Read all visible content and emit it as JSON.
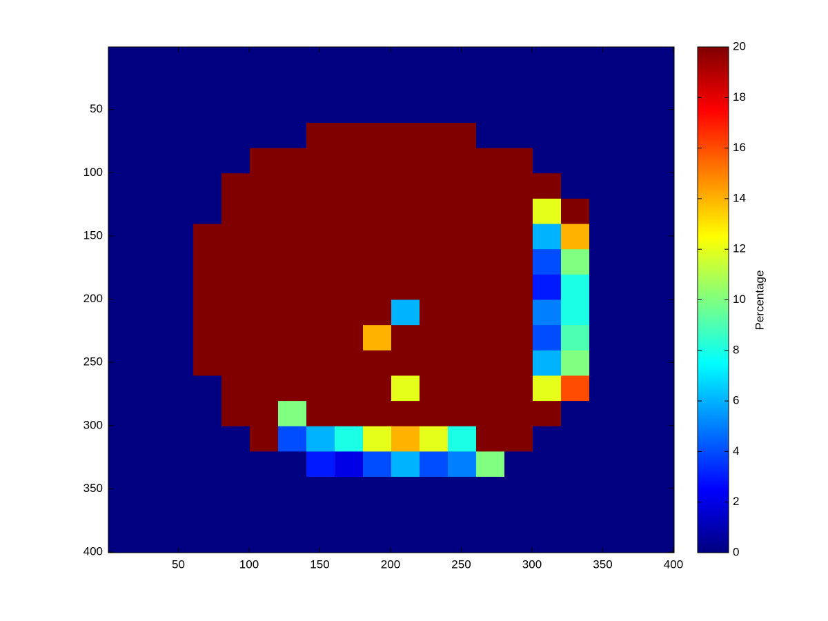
{
  "chart_data": {
    "type": "heatmap",
    "colormap": "jet",
    "xlim": [
      0.5,
      400.5
    ],
    "ylim": [
      0.5,
      400.5
    ],
    "y_reversed": true,
    "xticks": [
      50,
      100,
      150,
      200,
      250,
      300,
      350,
      400
    ],
    "yticks": [
      50,
      100,
      150,
      200,
      250,
      300,
      350,
      400
    ],
    "clim": [
      0,
      20
    ],
    "cticks": [
      0,
      2,
      4,
      6,
      8,
      10,
      12,
      14,
      16,
      18,
      20
    ],
    "colorbar_label": "Percentage",
    "z": [
      [
        0,
        0,
        0,
        0,
        0,
        0,
        0,
        0,
        0,
        0,
        0,
        0,
        0,
        0,
        0,
        0,
        0,
        0,
        0,
        0
      ],
      [
        0,
        0,
        0,
        0,
        0,
        0,
        0,
        0,
        0,
        0,
        0,
        0,
        0,
        0,
        0,
        0,
        0,
        0,
        0,
        0
      ],
      [
        0,
        0,
        0,
        0,
        0,
        0,
        0,
        0,
        0,
        0,
        0,
        0,
        0,
        0,
        0,
        0,
        0,
        0,
        0,
        0
      ],
      [
        0,
        0,
        0,
        0,
        0,
        0,
        0,
        20,
        20,
        20,
        20,
        20,
        20,
        0,
        0,
        0,
        0,
        0,
        0,
        0
      ],
      [
        0,
        0,
        0,
        0,
        0,
        20,
        20,
        20,
        20,
        20,
        20,
        20,
        20,
        20,
        20,
        0,
        0,
        0,
        0,
        0
      ],
      [
        0,
        0,
        0,
        0,
        20,
        20,
        20,
        20,
        20,
        20,
        20,
        20,
        20,
        20,
        20,
        20,
        0,
        0,
        0,
        0
      ],
      [
        0,
        0,
        0,
        0,
        20,
        20,
        20,
        20,
        20,
        20,
        20,
        20,
        20,
        20,
        20,
        12,
        20,
        0,
        0,
        0
      ],
      [
        0,
        0,
        0,
        20,
        20,
        20,
        20,
        20,
        20,
        20,
        20,
        20,
        20,
        20,
        20,
        6,
        14,
        0,
        0,
        0
      ],
      [
        0,
        0,
        0,
        20,
        20,
        20,
        20,
        20,
        20,
        20,
        20,
        20,
        20,
        20,
        20,
        4,
        10,
        0,
        0,
        0
      ],
      [
        0,
        0,
        0,
        20,
        20,
        20,
        20,
        20,
        20,
        20,
        20,
        20,
        20,
        20,
        20,
        3,
        8,
        0,
        0,
        0
      ],
      [
        0,
        0,
        0,
        20,
        20,
        20,
        20,
        20,
        20,
        20,
        6,
        20,
        20,
        20,
        20,
        5,
        8,
        0,
        0,
        0
      ],
      [
        0,
        0,
        0,
        20,
        20,
        20,
        20,
        20,
        20,
        14,
        20,
        20,
        20,
        20,
        20,
        4,
        9,
        0,
        0,
        0
      ],
      [
        0,
        0,
        0,
        20,
        20,
        20,
        20,
        20,
        20,
        20,
        20,
        20,
        20,
        20,
        20,
        6,
        10,
        0,
        0,
        0
      ],
      [
        0,
        0,
        0,
        0,
        20,
        20,
        20,
        20,
        20,
        20,
        12,
        20,
        20,
        20,
        20,
        12,
        16,
        0,
        0,
        0
      ],
      [
        0,
        0,
        0,
        0,
        20,
        20,
        10,
        20,
        20,
        20,
        20,
        20,
        20,
        20,
        20,
        20,
        0,
        0,
        0,
        0
      ],
      [
        0,
        0,
        0,
        0,
        0,
        20,
        4,
        6,
        8,
        12,
        14,
        12,
        8,
        20,
        20,
        0,
        0,
        0,
        0,
        0
      ],
      [
        0,
        0,
        0,
        0,
        0,
        0,
        0,
        3,
        2,
        4,
        6,
        4,
        5,
        10,
        0,
        0,
        0,
        0,
        0,
        0
      ],
      [
        0,
        0,
        0,
        0,
        0,
        0,
        0,
        0,
        0,
        0,
        0,
        0,
        0,
        0,
        0,
        0,
        0,
        0,
        0,
        0
      ],
      [
        0,
        0,
        0,
        0,
        0,
        0,
        0,
        0,
        0,
        0,
        0,
        0,
        0,
        0,
        0,
        0,
        0,
        0,
        0,
        0
      ],
      [
        0,
        0,
        0,
        0,
        0,
        0,
        0,
        0,
        0,
        0,
        0,
        0,
        0,
        0,
        0,
        0,
        0,
        0,
        0,
        0
      ]
    ]
  }
}
